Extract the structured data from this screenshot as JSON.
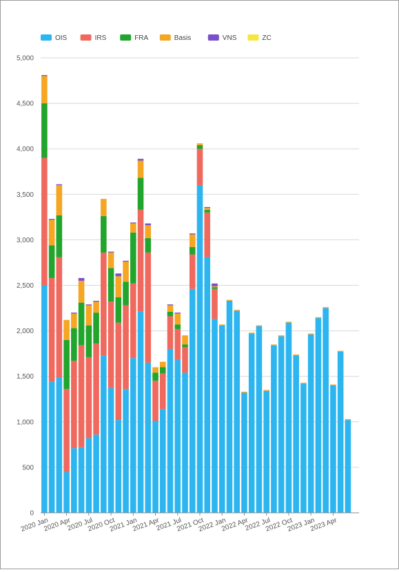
{
  "chart_data": {
    "type": "bar",
    "stacked": true,
    "legend_position": "top-left",
    "grid": true,
    "ylim": [
      0,
      5000
    ],
    "yticks": [
      "0",
      "500",
      "1,000",
      "1,500",
      "2,000",
      "2,500",
      "3,000",
      "3,500",
      "4,000",
      "4,500",
      "5,000"
    ],
    "xtick_labels": [
      {
        "index": 0,
        "label": "2020 Jan"
      },
      {
        "index": 3,
        "label": "2020 Apr"
      },
      {
        "index": 6,
        "label": "2020 Jul"
      },
      {
        "index": 9,
        "label": "2020 Oct"
      },
      {
        "index": 12,
        "label": "2021 Jan"
      },
      {
        "index": 15,
        "label": "2021 Apr"
      },
      {
        "index": 18,
        "label": "2021 Jul"
      },
      {
        "index": 21,
        "label": "2021 Oct"
      },
      {
        "index": 24,
        "label": "2022 Jan"
      },
      {
        "index": 27,
        "label": "2022 Apr"
      },
      {
        "index": 30,
        "label": "2022 Jul"
      },
      {
        "index": 33,
        "label": "2022 Oct"
      },
      {
        "index": 36,
        "label": "2023 Jan"
      },
      {
        "index": 39,
        "label": "2023 Apr"
      }
    ],
    "categories": [
      "2020 Jan",
      "2020 Feb",
      "2020 Mar",
      "2020 Apr",
      "2020 May",
      "2020 Jun",
      "2020 Jul",
      "2020 Aug",
      "2020 Sep",
      "2020 Oct",
      "2020 Nov",
      "2020 Dec",
      "2021 Jan",
      "2021 Feb",
      "2021 Mar",
      "2021 Apr",
      "2021 May",
      "2021 Jun",
      "2021 Jul",
      "2021 Aug",
      "2021 Sep",
      "2021 Oct",
      "2021 Nov",
      "2021 Dec",
      "2022 Jan",
      "2022 Feb",
      "2022 Mar",
      "2022 Apr",
      "2022 May",
      "2022 Jun",
      "2022 Jul",
      "2022 Aug",
      "2022 Sep",
      "2022 Oct",
      "2022 Nov",
      "2022 Dec",
      "2023 Jan",
      "2023 Feb",
      "2023 Mar",
      "2023 Apr",
      "2023 May",
      "2023 Jun",
      "2023 Jul"
    ],
    "series": [
      {
        "name": "OIS",
        "color": "#2db5f0",
        "values": [
          2500,
          1440,
          1490,
          450,
          710,
          720,
          820,
          860,
          1730,
          1370,
          1020,
          1360,
          1700,
          2210,
          1650,
          1010,
          1140,
          1800,
          1680,
          1540,
          2460,
          3600,
          2810,
          2130,
          2060,
          2330,
          2220,
          1320,
          1970,
          2050,
          1340,
          1840,
          1940,
          2090,
          1730,
          1420,
          1960,
          2140,
          2250,
          1400,
          1770,
          1020,
          0
        ]
      },
      {
        "name": "IRS",
        "color": "#f0695e",
        "values": [
          1400,
          1140,
          1320,
          910,
          960,
          1120,
          890,
          1000,
          1130,
          950,
          1070,
          920,
          820,
          1120,
          1210,
          440,
          390,
          360,
          340,
          280,
          380,
          400,
          490,
          330,
          0,
          0,
          0,
          0,
          0,
          0,
          0,
          0,
          0,
          0,
          0,
          0,
          0,
          0,
          0,
          0,
          0,
          0,
          0
        ]
      },
      {
        "name": "FRA",
        "color": "#22a52c",
        "values": [
          600,
          360,
          460,
          540,
          360,
          470,
          350,
          340,
          400,
          370,
          280,
          260,
          560,
          350,
          160,
          90,
          70,
          50,
          50,
          30,
          80,
          40,
          30,
          20,
          0,
          0,
          0,
          0,
          0,
          0,
          0,
          0,
          0,
          0,
          0,
          0,
          0,
          0,
          0,
          0,
          0,
          0,
          0
        ]
      },
      {
        "name": "Basis",
        "color": "#f5a623",
        "values": [
          300,
          280,
          330,
          220,
          160,
          240,
          220,
          120,
          190,
          170,
          230,
          220,
          100,
          190,
          140,
          60,
          60,
          70,
          120,
          100,
          140,
          20,
          20,
          10,
          10,
          10,
          10,
          10,
          10,
          10,
          10,
          10,
          10,
          10,
          10,
          10,
          10,
          10,
          10,
          10,
          10,
          10,
          0
        ]
      },
      {
        "name": "VNS",
        "color": "#7a4fc9",
        "values": [
          10,
          10,
          10,
          0,
          10,
          30,
          10,
          10,
          0,
          10,
          30,
          10,
          10,
          20,
          20,
          0,
          0,
          10,
          10,
          0,
          10,
          0,
          10,
          30,
          0,
          0,
          0,
          0,
          0,
          0,
          0,
          0,
          0,
          0,
          0,
          0,
          0,
          0,
          0,
          0,
          0,
          0,
          0
        ]
      },
      {
        "name": "ZC",
        "color": "#f5e642",
        "values": [
          0,
          0,
          0,
          0,
          0,
          0,
          0,
          0,
          0,
          0,
          0,
          0,
          0,
          0,
          0,
          0,
          0,
          0,
          0,
          0,
          0,
          0,
          0,
          0,
          0,
          0,
          0,
          0,
          0,
          0,
          0,
          0,
          0,
          0,
          0,
          0,
          0,
          0,
          0,
          0,
          0,
          0,
          0
        ]
      }
    ]
  }
}
